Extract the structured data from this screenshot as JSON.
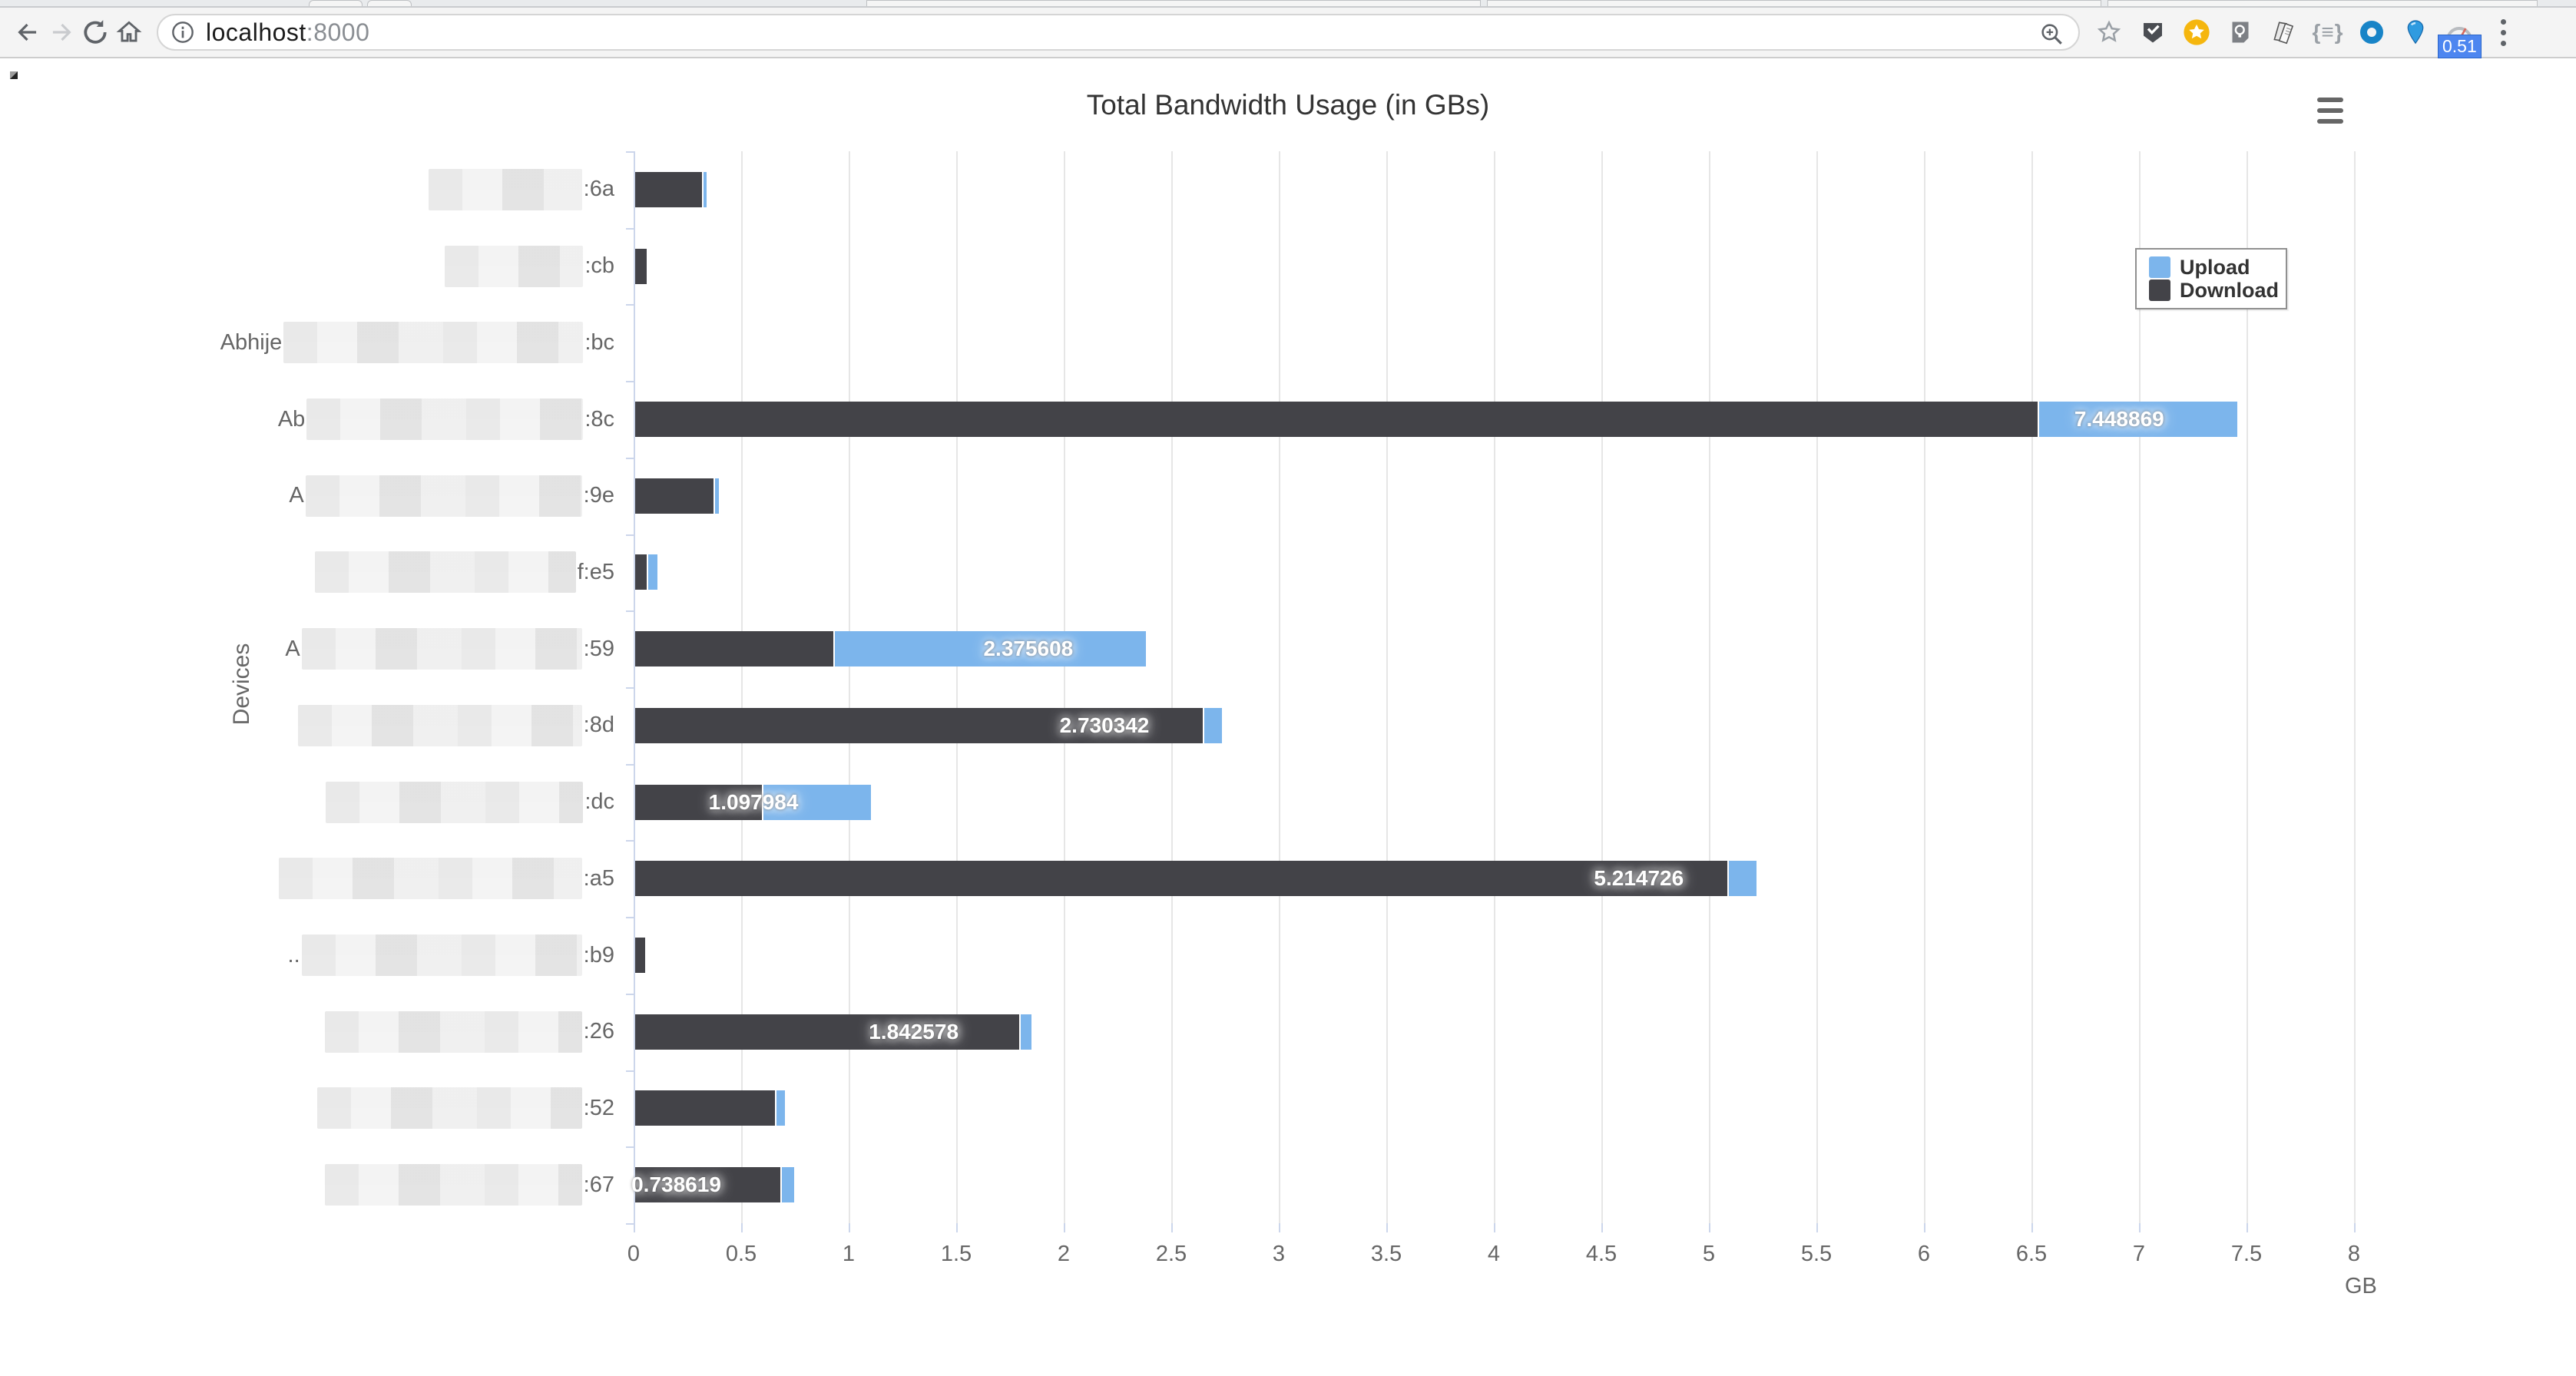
{
  "browser": {
    "url_host": "localhost",
    "url_port": ":8000",
    "extension_badge": "0.51",
    "braces_glyph": "{≡}",
    "icons": [
      "back",
      "forward",
      "reload",
      "home",
      "page-info",
      "zoom",
      "bookmark-star",
      "pocket-check",
      "star-circle",
      "lightbulb",
      "book",
      "braces",
      "blue-ring",
      "blue-pin",
      "gauge",
      "menu-dots"
    ]
  },
  "chart": {
    "title": "Total Bandwidth Usage (in GBs)",
    "y_axis_title": "Devices",
    "x_axis_title": "GB",
    "legend": [
      {
        "label": "Upload",
        "color": "#7cb5ec"
      },
      {
        "label": "Download",
        "color": "#434348"
      }
    ]
  },
  "chart_data": {
    "type": "bar",
    "stacked": true,
    "orientation": "horizontal",
    "title": "Total Bandwidth Usage (in GBs)",
    "xlabel": "GB",
    "ylabel": "Devices",
    "xlim": [
      0,
      8
    ],
    "x_ticks": [
      "0",
      "0.5",
      "1",
      "1.5",
      "2",
      "2.5",
      "3",
      "3.5",
      "4",
      "4.5",
      "5",
      "5.5",
      "6",
      "6.5",
      "7",
      "7.5",
      "8"
    ],
    "grid": true,
    "legend_position": "top-right",
    "categories": [
      ":6a",
      ":cb",
      ":bc",
      ":8c",
      ":9e",
      "f:e5",
      ":59",
      ":8d",
      ":dc",
      ":a5",
      ":b9",
      ":26",
      ":52",
      ":67"
    ],
    "series": [
      {
        "name": "Download",
        "color": "#434348",
        "values": [
          0.31,
          0.055,
          0,
          6.52,
          0.365,
          0.055,
          0.92,
          2.64,
          0.59,
          5.08,
          0.045,
          1.785,
          0.65,
          0.675
        ]
      },
      {
        "name": "Upload",
        "color": "#7cb5ec",
        "values": [
          0.022,
          0,
          0,
          0.929,
          0.025,
          0.05,
          1.456,
          0.09,
          0.508,
          0.135,
          0,
          0.058,
          0.045,
          0.064
        ]
      }
    ],
    "stack_total_labels": [
      "",
      "",
      "",
      "7.448869",
      "",
      "",
      "2.375608",
      "2.730342",
      "1.097984",
      "5.214726",
      "",
      "1.842578",
      "",
      "0.738619"
    ]
  },
  "devices": [
    {
      "prefix": "",
      "suffix": ":6a",
      "block_w": 200
    },
    {
      "prefix": "",
      "suffix": ":cb",
      "block_w": 180
    },
    {
      "prefix": "Abhije",
      "suffix": ":bc",
      "block_w": 390
    },
    {
      "prefix": "Ab",
      "suffix": ":8c",
      "block_w": 360
    },
    {
      "prefix": "A",
      "suffix": ":9e",
      "block_w": 360
    },
    {
      "prefix": "",
      "suffix": "f:e5",
      "block_w": 340
    },
    {
      "prefix": "A",
      "suffix": ":59",
      "block_w": 365
    },
    {
      "prefix": "",
      "suffix": ":8d",
      "block_w": 370
    },
    {
      "prefix": "",
      "suffix": ":dc",
      "block_w": 335
    },
    {
      "prefix": "",
      "suffix": ":a5",
      "block_w": 395
    },
    {
      "prefix": "..",
      "suffix": ":b9",
      "block_w": 365
    },
    {
      "prefix": "",
      "suffix": ":26",
      "block_w": 335
    },
    {
      "prefix": "",
      "suffix": ":52",
      "block_w": 345
    },
    {
      "prefix": "",
      "suffix": ":67",
      "block_w": 335
    }
  ]
}
